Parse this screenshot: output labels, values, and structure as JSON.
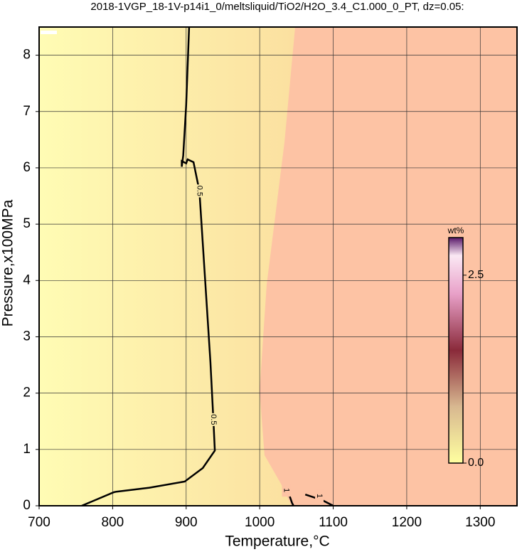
{
  "chart_data": {
    "type": "contour",
    "title": "2018-1VGP_18-1V-p14i1_0/meltsliquid/TiO2/H2O_3.4_C1.000_0_PT, dz=0.05:",
    "xlabel": "Temperature,°C",
    "ylabel": "Pressure,x100MPa",
    "xlim": [
      700,
      1350
    ],
    "xticks": [
      700,
      800,
      900,
      1000,
      1100,
      1200,
      1300
    ],
    "ylim": [
      0,
      8.5
    ],
    "yticks": [
      0,
      1,
      2,
      3,
      4,
      5,
      6,
      7,
      8
    ],
    "grid": true,
    "series": [
      {
        "name": "0.5",
        "color": "#000000",
        "x": [
          758,
          801.6,
          805,
          850,
          898,
          922.6,
          939,
          937,
          933,
          925.5,
          918,
          910,
          902,
          900,
          894,
          894,
          896,
          900,
          904
        ],
        "y": [
          0,
          0.24,
          0.25,
          0.32,
          0.43,
          0.67,
          0.98,
          1.53,
          2.55,
          4.07,
          5.59,
          6.1,
          6.15,
          6.08,
          6.12,
          6.02,
          6.22,
          7.11,
          8.5
        ]
      },
      {
        "name": "1",
        "color": "#000000",
        "x": [
          1033,
          1040,
          1044,
          1046,
          null,
          1062,
          1085,
          1100
        ],
        "y": [
          0.25,
          0.2,
          0.05,
          0,
          null,
          0.2,
          0.1,
          0
        ]
      }
    ],
    "colorbar": {
      "label": "wt%",
      "lim": [
        0,
        3
      ],
      "ticks": [
        {
          "value": 0,
          "label": "0.0"
        },
        {
          "value": 2.5,
          "label": "2.5"
        }
      ]
    }
  }
}
